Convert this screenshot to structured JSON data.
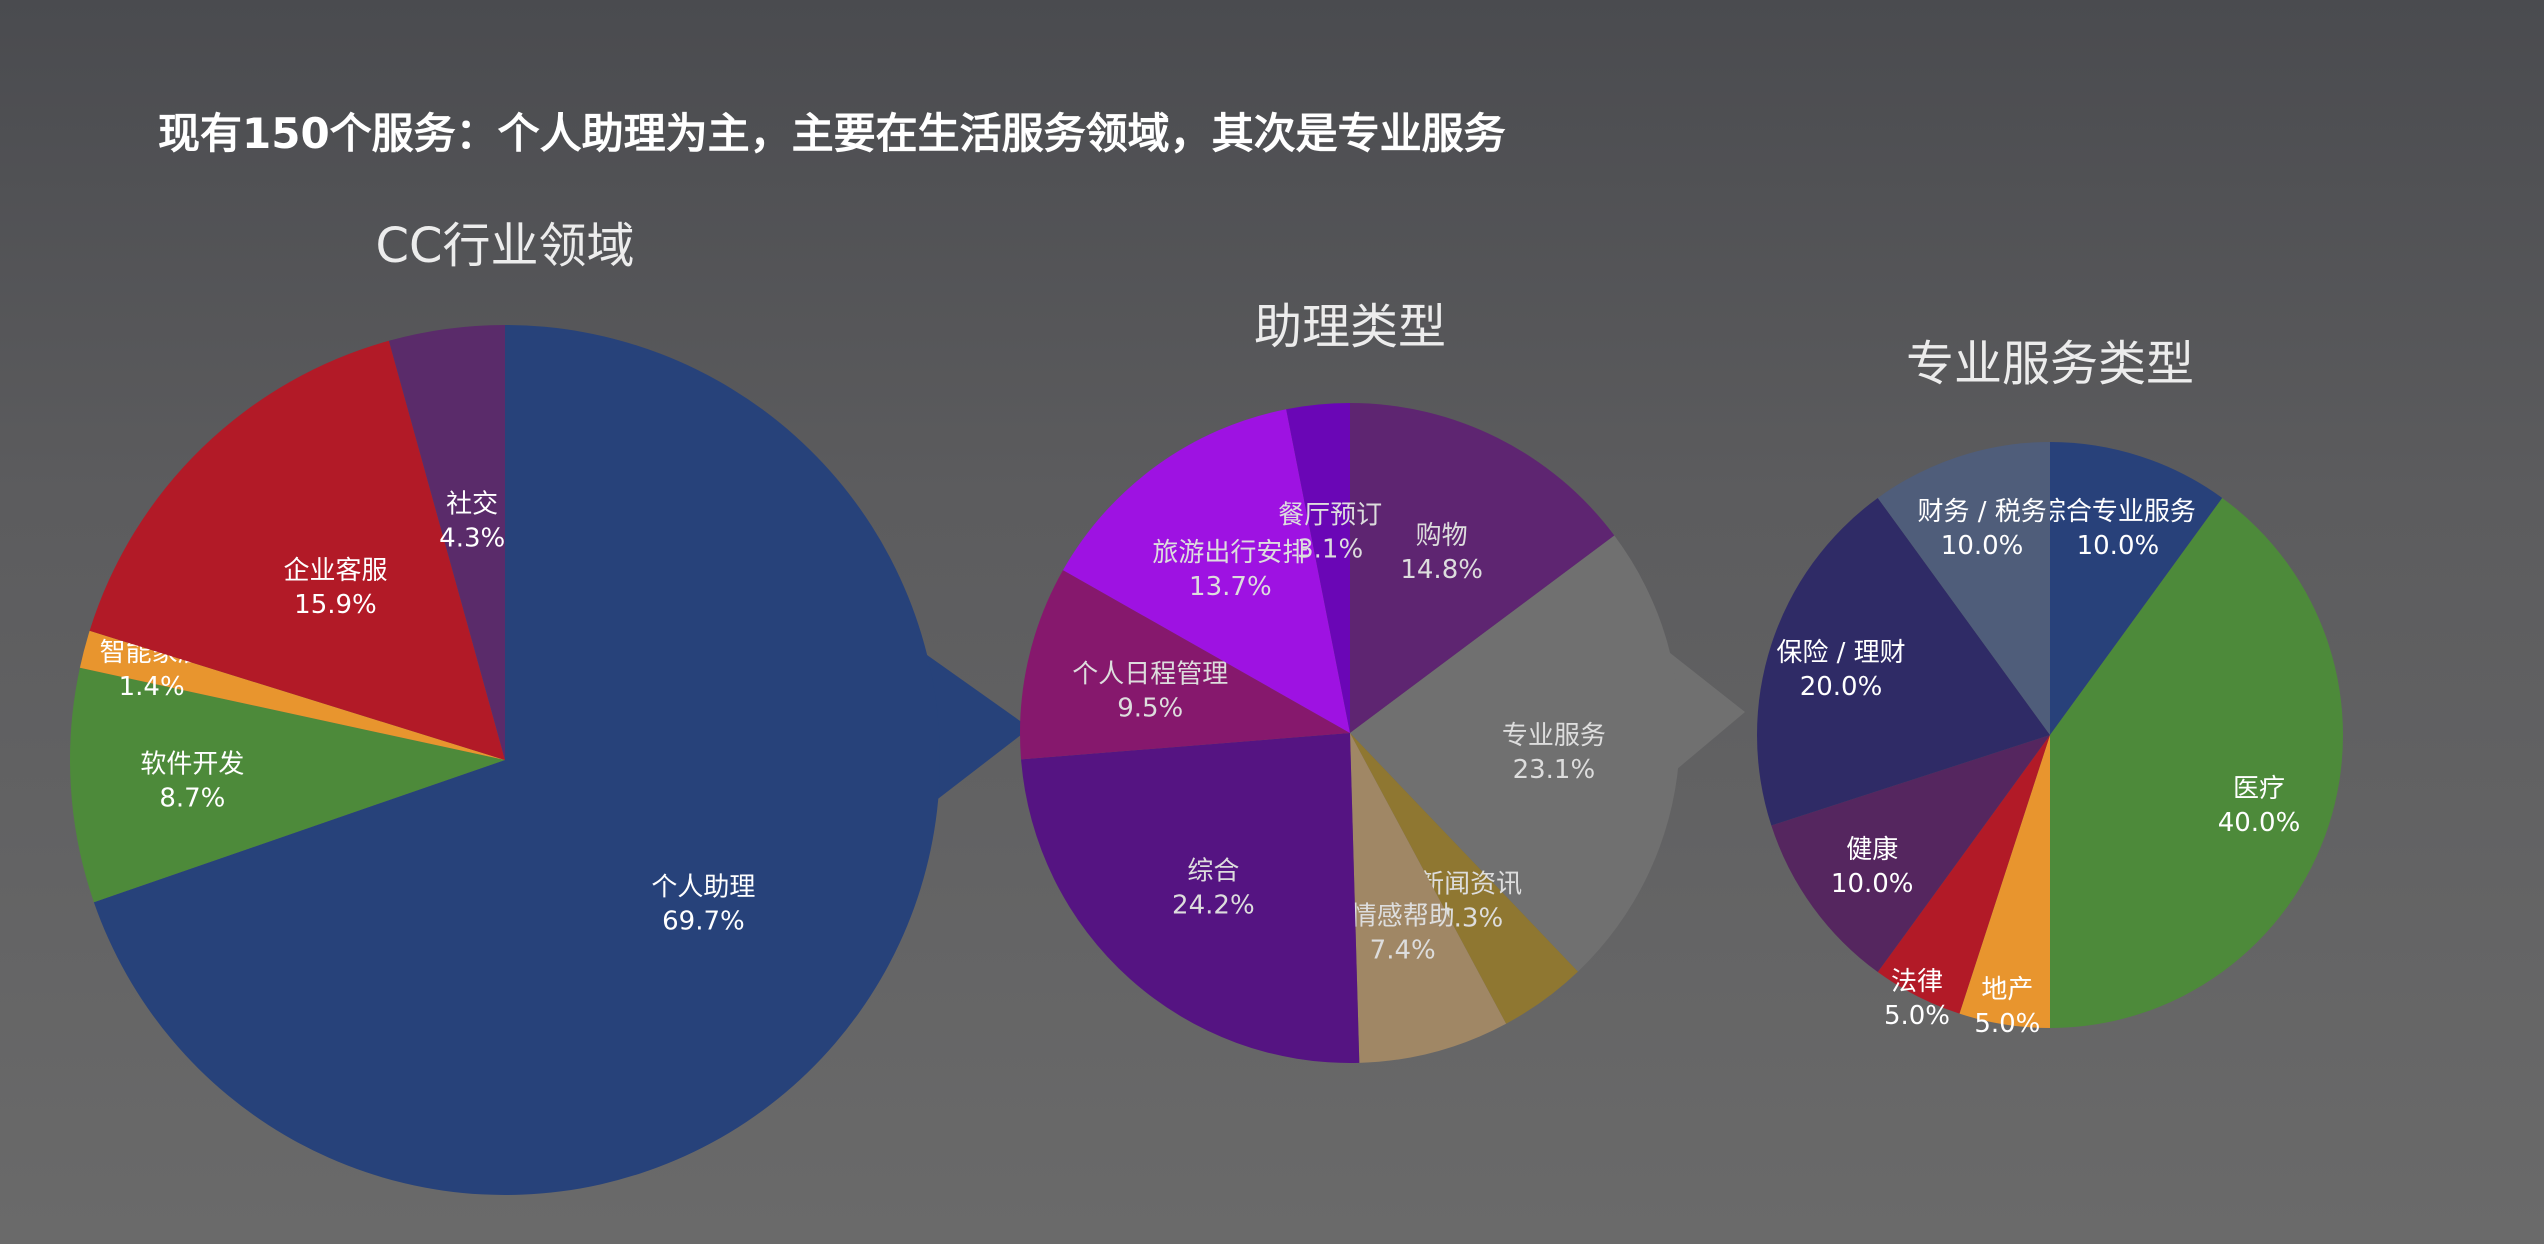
{
  "headline": "现有150个服务：个人助理为主，主要在生活服务领域，其次是专业服务",
  "chart_data": [
    {
      "type": "pie",
      "title": "CC行业领域",
      "slices": [
        {
          "label": "个人助理",
          "pct": "69.7%",
          "value": 69.7,
          "color": "#27427a",
          "text_color": "#ffffff"
        },
        {
          "label": "软件开发",
          "pct": "8.7%",
          "value": 8.7,
          "color": "#4d8a3a",
          "text_color": "#ffffff"
        },
        {
          "label": "智能家居",
          "pct": "1.4%",
          "value": 1.4,
          "color": "#e8952e",
          "text_color": "#ffffff"
        },
        {
          "label": "企业客服",
          "pct": "15.9%",
          "value": 15.9,
          "color": "#b21a27",
          "text_color": "#ffffff"
        },
        {
          "label": "社交",
          "pct": "4.3%",
          "value": 4.3,
          "color": "#5a2b6a",
          "text_color": "#ffffff"
        }
      ]
    },
    {
      "type": "pie",
      "title": "助理类型",
      "slices": [
        {
          "label": "购物",
          "pct": "14.8%",
          "value": 14.8,
          "color": "#5e2571",
          "text_color": "#dddddd"
        },
        {
          "label": "专业服务",
          "pct": "23.1%",
          "value": 23.1,
          "color": "#707070",
          "text_color": "#dddddd"
        },
        {
          "label": "新闻资讯",
          "pct": "4.3%",
          "value": 4.3,
          "color": "#8f7731",
          "text_color": "#dddddd"
        },
        {
          "label": "情感帮助",
          "pct": "7.4%",
          "value": 7.4,
          "color": "#a08765",
          "text_color": "#dddddd"
        },
        {
          "label": "综合",
          "pct": "24.2%",
          "value": 24.2,
          "color": "#551482",
          "text_color": "#dddddd"
        },
        {
          "label": "个人日程管理",
          "pct": "9.5%",
          "value": 9.5,
          "color": "#86186d",
          "text_color": "#dddddd"
        },
        {
          "label": "旅游出行安排",
          "pct": "13.7%",
          "value": 13.7,
          "color": "#9e12e2",
          "text_color": "#dddddd"
        },
        {
          "label": "餐厅预订",
          "pct": "3.1%",
          "value": 3.1,
          "color": "#6a06b6",
          "text_color": "#dddddd"
        }
      ]
    },
    {
      "type": "pie",
      "title": "专业服务类型",
      "slices": [
        {
          "label": "综合专业服务",
          "pct": "10.0%",
          "value": 10.0,
          "color": "#28417a",
          "text_color": "#ffffff"
        },
        {
          "label": "医疗",
          "pct": "40.0%",
          "value": 40.0,
          "color": "#4d8a3a",
          "text_color": "#ffffff"
        },
        {
          "label": "地产",
          "pct": "5.0%",
          "value": 5.0,
          "color": "#e8952e",
          "text_color": "#ffffff"
        },
        {
          "label": "法律",
          "pct": "5.0%",
          "value": 5.0,
          "color": "#b21a27",
          "text_color": "#ffffff"
        },
        {
          "label": "健康",
          "pct": "10.0%",
          "value": 10.0,
          "color": "#55265f",
          "text_color": "#ffffff"
        },
        {
          "label": "保险 / 理财",
          "pct": "20.0%",
          "value": 20.0,
          "color": "#2f2b66",
          "text_color": "#ffffff"
        },
        {
          "label": "财务 / 税务",
          "pct": "10.0%",
          "value": 10.0,
          "color": "#4f5d7a",
          "text_color": "#ffffff"
        }
      ]
    }
  ]
}
